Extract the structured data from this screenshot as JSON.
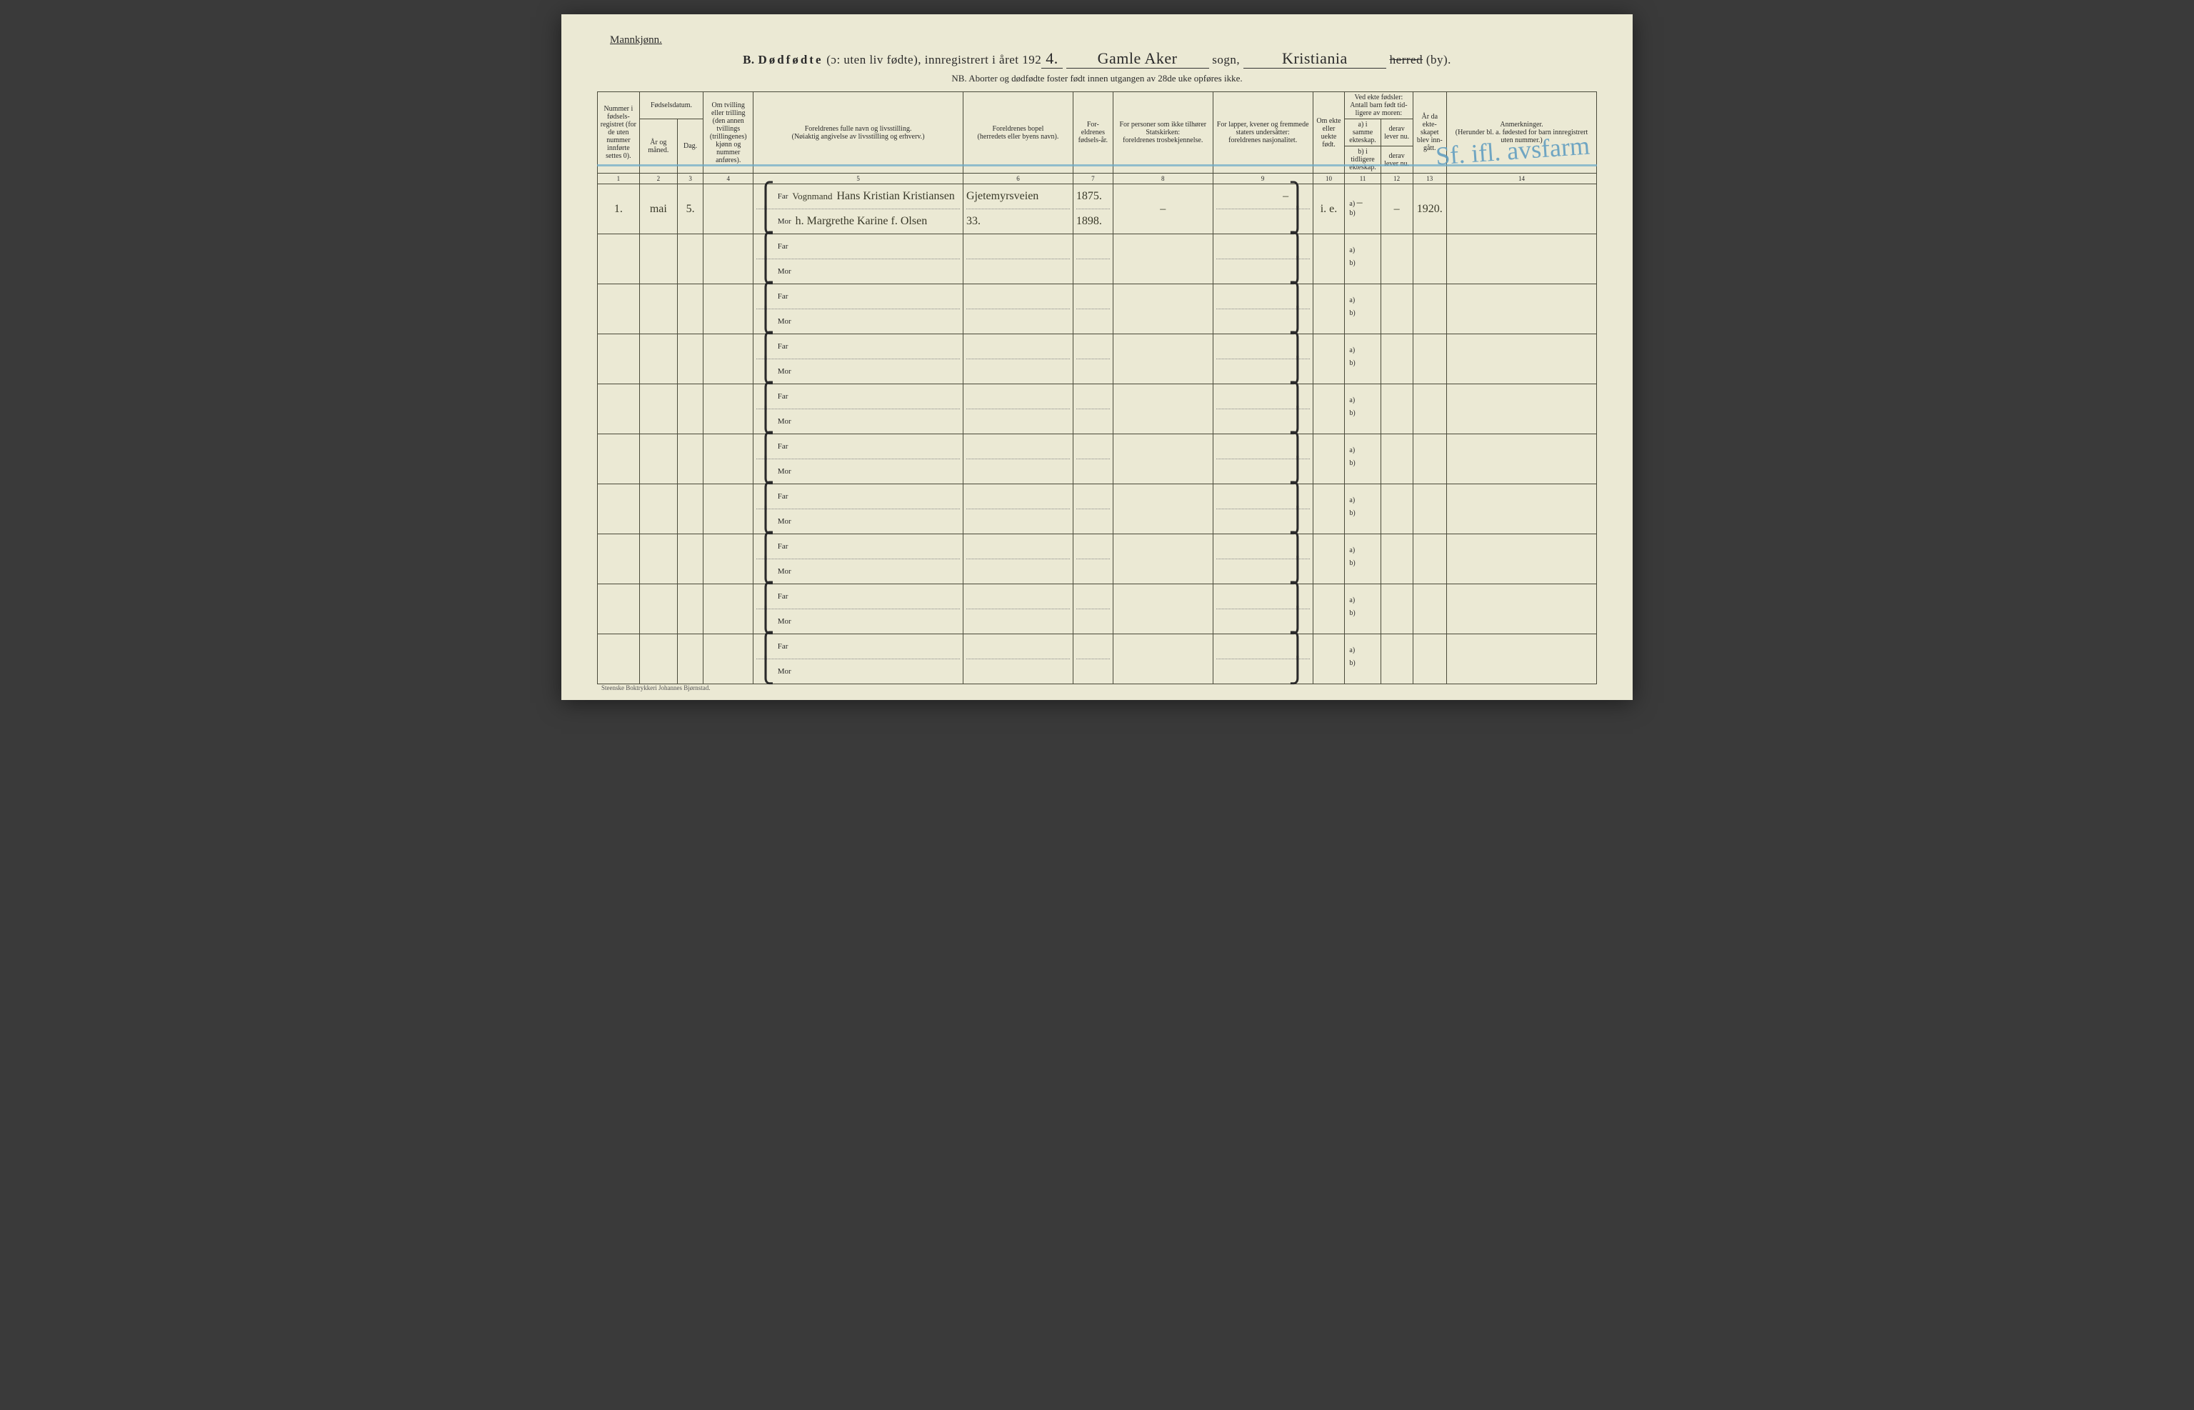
{
  "colors": {
    "paper": "#ebe9d4",
    "ink": "#2a2a2a",
    "border": "#4a4a3a",
    "blue_pencil": "#5a9abf",
    "blue_line": "#6aa8c8",
    "background": "#3a3a3a"
  },
  "header": {
    "gender": "Mannkjønn.",
    "section": "B.",
    "title_main": "Dødfødte",
    "title_paren": "(ɔ: uten liv fødte),",
    "title_year_prefix": "innregistrert i året 192",
    "year_suffix_hand": "4.",
    "parish_hand": "Gamle Aker",
    "parish_label": "sogn,",
    "city_hand": "Kristiania",
    "herred_strike": "herred",
    "by": "(by).",
    "nb": "NB. Aborter og dødfødte foster født innen utgangen av 28de uke opføres ikke."
  },
  "columns": {
    "c1": "Nummer i fødsels-registret (for de uten nummer innførte settes 0).",
    "c2_3": "Fødselsdatum.",
    "c2": "År og måned.",
    "c3": "Dag.",
    "c4": "Om tvilling eller trilling (den annen tvillings (trillingenes) kjønn og nummer anføres).",
    "c5_header": "Foreldrenes fulle navn og livsstilling.",
    "c5_sub": "(Nøiaktig angivelse av livsstilling og erhverv.)",
    "c6_header": "Foreldrenes bopel",
    "c6_sub": "(herredets eller byens navn).",
    "c7": "For-eldrenes fødsels-år.",
    "c8_header": "For personer som ikke tilhører Statskirken:",
    "c8_sub": "foreldrenes trosbekjennelse.",
    "c9_header": "For lapper, kvener og fremmede staters undersåtter:",
    "c9_sub": "foreldrenes nasjonalitet.",
    "c10": "Om ekte eller uekte født.",
    "c11_12_top": "Ved ekte fødsler: Antall barn født tid-ligere av moren:",
    "c11": "a) i samme ekteskap.",
    "c11b": "b) i tidligere ekteskap.",
    "c12": "derav lever nu.",
    "c12b": "derav lever nu.",
    "c13": "År da ekte-skapet blev inn-gått.",
    "c14_header": "Anmerkninger.",
    "c14_sub": "(Herunder bl. a. fødested for barn innregistrert uten nummer.)",
    "far": "Far",
    "mor": "Mor",
    "a": "a)",
    "b": "b)"
  },
  "colnums": [
    "1",
    "2",
    "3",
    "4",
    "5",
    "6",
    "7",
    "8",
    "9",
    "10",
    "11",
    "12",
    "13",
    "14"
  ],
  "entry1": {
    "num": "1.",
    "month": "mai",
    "day": "5.",
    "occupation": "Vognmand",
    "far_name": "Hans Kristian Kristiansen",
    "mor_name": "h. Margrethe Karine f. Olsen",
    "bopel_far": "Gjetemyrsveien",
    "bopel_mor": "33.",
    "far_year": "1875.",
    "mor_year": "1898.",
    "dash": "–",
    "ekte": "i. e.",
    "year_marr": "1920."
  },
  "blue_annotation": "Sf. ifl.\navsfarm",
  "footer": "Steenske Boktrykkeri Johannes Bjørnstad.",
  "row_count": 10
}
